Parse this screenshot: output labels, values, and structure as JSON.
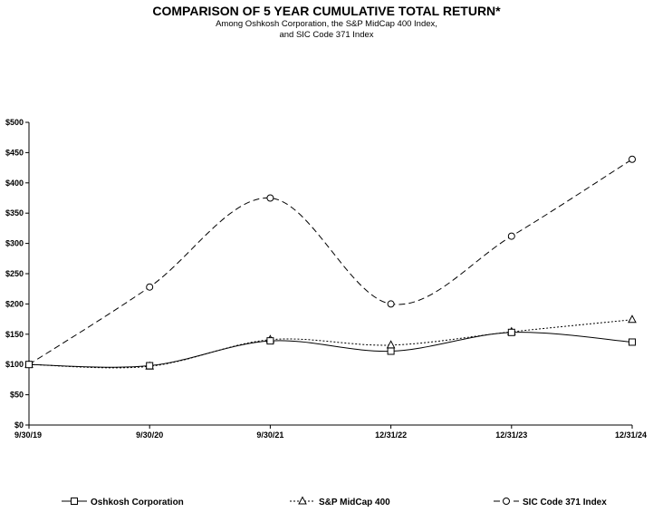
{
  "chart_data": {
    "type": "line",
    "title": "COMPARISON OF 5 YEAR CUMULATIVE TOTAL RETURN*",
    "subtitle_lines": [
      "Among Oshkosh Corporation, the S&P MidCap 400 Index,",
      "and SIC Code 371 Index"
    ],
    "categories": [
      "9/30/19",
      "9/30/20",
      "9/30/21",
      "12/31/22",
      "12/31/23",
      "12/31/24"
    ],
    "ylim": [
      0,
      500
    ],
    "yticks": [
      0,
      50,
      100,
      150,
      200,
      250,
      300,
      350,
      400,
      450,
      500
    ],
    "ytick_labels": [
      "$0",
      "$50",
      "$100",
      "$150",
      "$200",
      "$250",
      "$300",
      "$350",
      "$400",
      "$450",
      "$500"
    ],
    "legend_position": "bottom",
    "series": [
      {
        "name": "Oshkosh Corporation",
        "values": [
          100,
          98,
          139,
          122,
          153,
          137
        ],
        "marker": "square",
        "dash": "solid"
      },
      {
        "name": "S&P MidCap 400",
        "values": [
          100,
          97,
          141,
          132,
          154,
          174
        ],
        "marker": "triangle",
        "dash": "dotted"
      },
      {
        "name": "SIC Code 371 Index",
        "values": [
          100,
          228,
          375,
          200,
          312,
          439
        ],
        "marker": "circle",
        "dash": "dashed"
      }
    ]
  }
}
